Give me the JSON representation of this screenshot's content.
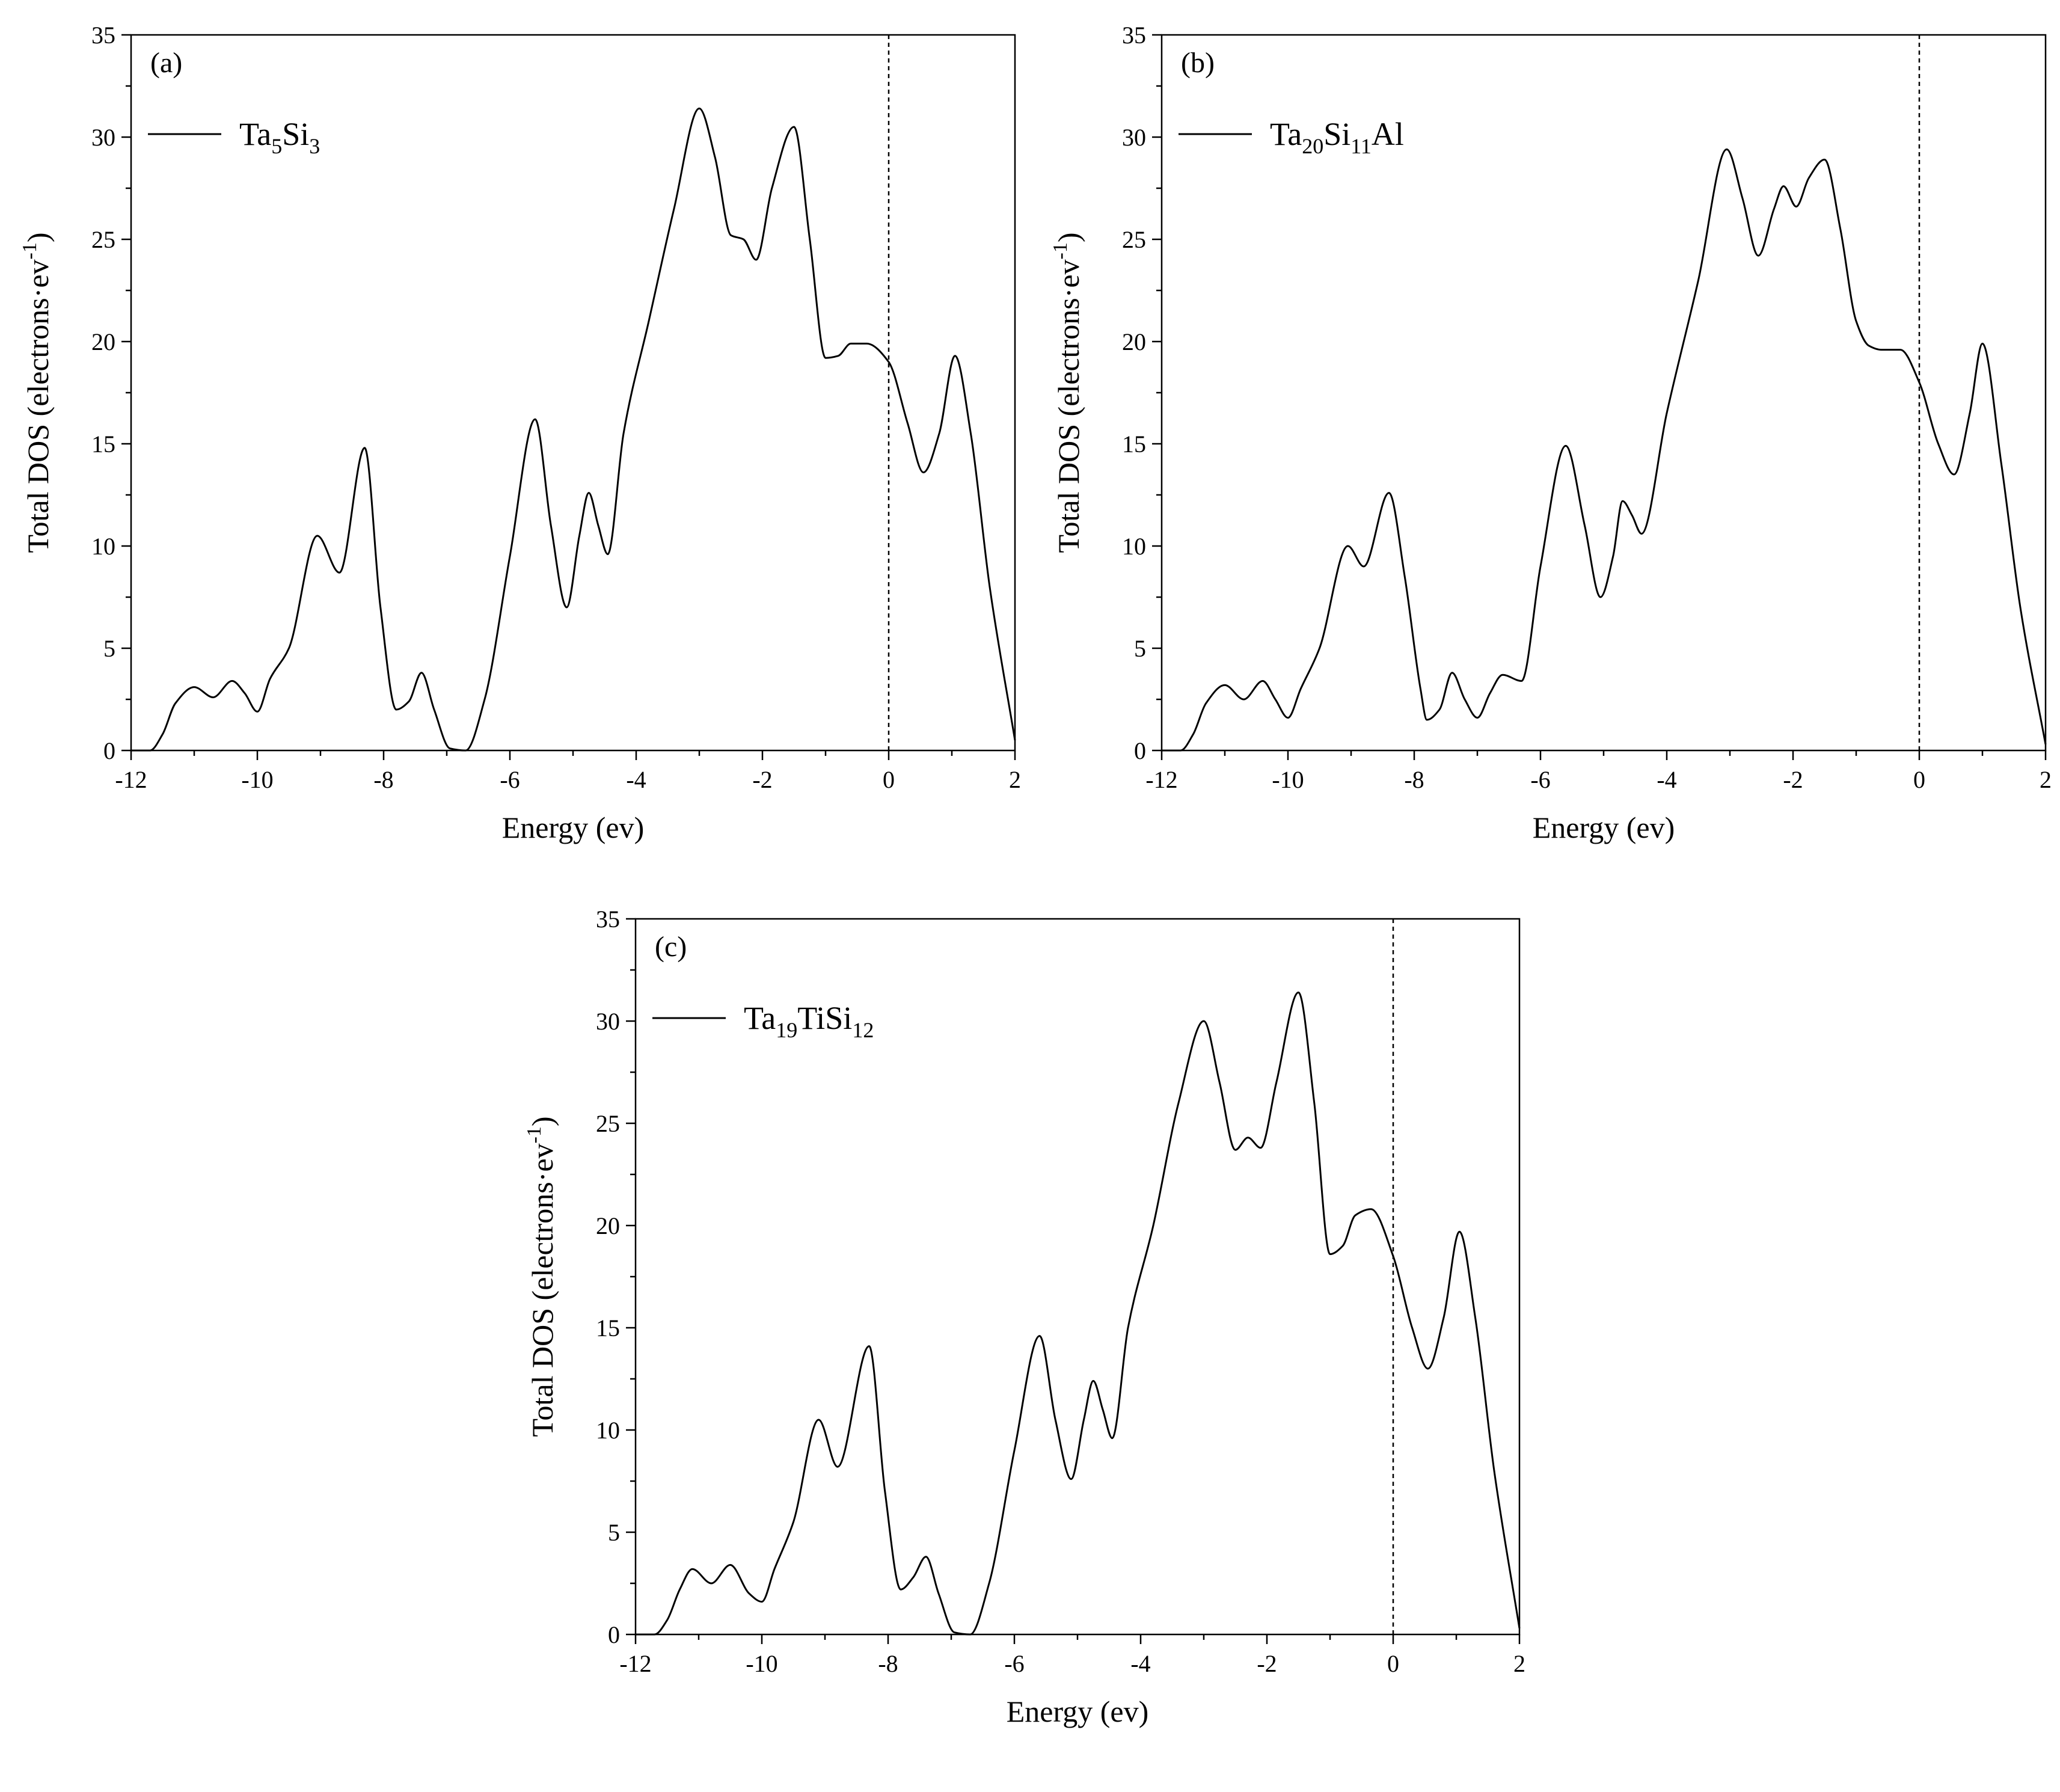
{
  "chart_data": [
    {
      "type": "line",
      "panel_label": "(a)",
      "legend": {
        "prefix": "Ta",
        "parts": [
          [
            "Ta",
            ""
          ],
          [
            "5",
            "sub"
          ],
          [
            "Si",
            ""
          ],
          [
            "3",
            "sub"
          ]
        ],
        "placement": "top-left"
      },
      "xlabel": "Energy (ev)",
      "ylabel": "Total DOS (electrons·ev",
      "ylabel_sup": "-1",
      "ylabel_close": ")",
      "xlim": [
        -12,
        2
      ],
      "ylim": [
        0,
        35
      ],
      "xticks": [
        "-12",
        "-10",
        "-8",
        "-6",
        "-4",
        "-2",
        "0",
        "2"
      ],
      "yticks": [
        "0",
        "5",
        "10",
        "15",
        "20",
        "25",
        "30",
        "35"
      ],
      "fermi_level": 0,
      "series": [
        {
          "name": "Ta5Si3",
          "x": [
            -12,
            -11.7,
            -11.5,
            -11.3,
            -11.0,
            -10.7,
            -10.4,
            -10.2,
            -10.0,
            -9.8,
            -9.5,
            -9.05,
            -8.7,
            -8.3,
            -8.05,
            -7.8,
            -7.6,
            -7.4,
            -7.2,
            -6.95,
            -6.7,
            -6.4,
            -6.0,
            -5.6,
            -5.35,
            -5.1,
            -4.9,
            -4.75,
            -4.6,
            -4.45,
            -4.2,
            -3.8,
            -3.4,
            -3.0,
            -2.75,
            -2.5,
            -2.3,
            -2.1,
            -1.85,
            -1.5,
            -1.25,
            -1.0,
            -0.8,
            -0.6,
            -0.35,
            0.0,
            0.3,
            0.55,
            0.8,
            1.05,
            1.3,
            1.6,
            2.0
          ],
          "values": [
            0,
            0,
            0.8,
            2.3,
            3.1,
            2.6,
            3.4,
            2.8,
            1.9,
            3.5,
            5.0,
            10.5,
            8.7,
            14.8,
            7.0,
            2.0,
            2.4,
            3.8,
            2.0,
            0.1,
            0,
            2.5,
            9.5,
            16.2,
            11.0,
            7.0,
            10.5,
            12.6,
            11.0,
            9.6,
            15.5,
            21.0,
            26.5,
            31.4,
            29.0,
            25.2,
            25.0,
            24.0,
            27.5,
            30.5,
            25.0,
            19.2,
            19.3,
            19.9,
            19.9,
            19.0,
            16.0,
            13.6,
            15.5,
            19.3,
            15.5,
            8.0,
            0.5
          ]
        }
      ]
    },
    {
      "type": "line",
      "panel_label": "(b)",
      "legend": {
        "prefix": "Ta",
        "parts": [
          [
            "Ta",
            ""
          ],
          [
            "20",
            "sub"
          ],
          [
            "Si",
            ""
          ],
          [
            "11",
            "sub"
          ],
          [
            "Al",
            ""
          ]
        ],
        "placement": "top-left"
      },
      "xlabel": "Energy (ev)",
      "ylabel": "Total DOS (electrons·ev",
      "ylabel_sup": "-1",
      "ylabel_close": ")",
      "xlim": [
        -12,
        2
      ],
      "ylim": [
        0,
        35
      ],
      "xticks": [
        "-12",
        "-10",
        "-8",
        "-6",
        "-4",
        "-2",
        "0",
        "2"
      ],
      "yticks": [
        "0",
        "5",
        "10",
        "15",
        "20",
        "25",
        "30",
        "35"
      ],
      "fermi_level": 0,
      "series": [
        {
          "name": "Ta20Si11Al",
          "x": [
            -12,
            -11.7,
            -11.5,
            -11.3,
            -11.0,
            -10.7,
            -10.4,
            -10.2,
            -10.0,
            -9.8,
            -9.5,
            -9.05,
            -8.8,
            -8.4,
            -8.15,
            -7.9,
            -7.8,
            -7.6,
            -7.4,
            -7.2,
            -7.0,
            -6.8,
            -6.6,
            -6.3,
            -6.0,
            -5.6,
            -5.3,
            -5.05,
            -4.85,
            -4.7,
            -4.55,
            -4.4,
            -4.0,
            -3.5,
            -3.05,
            -2.8,
            -2.55,
            -2.3,
            -2.15,
            -1.95,
            -1.75,
            -1.5,
            -1.25,
            -1.0,
            -0.8,
            -0.6,
            -0.3,
            0.0,
            0.3,
            0.55,
            0.8,
            1.0,
            1.3,
            1.6,
            2.0
          ],
          "values": [
            0,
            0,
            0.8,
            2.3,
            3.2,
            2.5,
            3.4,
            2.5,
            1.6,
            3.0,
            5.0,
            10.0,
            9.0,
            12.6,
            8.5,
            3.0,
            1.5,
            2.0,
            3.8,
            2.5,
            1.6,
            2.8,
            3.7,
            3.4,
            9.0,
            14.9,
            11.0,
            7.5,
            9.5,
            12.2,
            11.5,
            10.6,
            16.5,
            23.0,
            29.4,
            27.0,
            24.2,
            26.5,
            27.6,
            26.6,
            28.0,
            28.9,
            25.5,
            21.0,
            19.8,
            19.6,
            19.6,
            18.0,
            15.0,
            13.5,
            16.5,
            19.9,
            14.0,
            7.0,
            0.3
          ]
        }
      ]
    },
    {
      "type": "line",
      "panel_label": "(c)",
      "legend": {
        "prefix": "Ta",
        "parts": [
          [
            "Ta",
            ""
          ],
          [
            "19",
            "sub"
          ],
          [
            "TiSi",
            ""
          ],
          [
            "12",
            "sub"
          ]
        ],
        "placement": "top-left"
      },
      "xlabel": "Energy (ev)",
      "ylabel": "Total DOS (electrons·ev",
      "ylabel_sup": "-1",
      "ylabel_close": ")",
      "xlim": [
        -12,
        2
      ],
      "ylim": [
        0,
        35
      ],
      "xticks": [
        "-12",
        "-10",
        "-8",
        "-6",
        "-4",
        "-2",
        "0",
        "2"
      ],
      "yticks": [
        "0",
        "5",
        "10",
        "15",
        "20",
        "25",
        "30",
        "35"
      ],
      "fermi_level": 0,
      "series": [
        {
          "name": "Ta19TiSi12",
          "x": [
            -12,
            -11.7,
            -11.5,
            -11.3,
            -11.1,
            -10.8,
            -10.5,
            -10.2,
            -10.0,
            -9.8,
            -9.5,
            -9.1,
            -8.8,
            -8.3,
            -8.05,
            -7.8,
            -7.6,
            -7.4,
            -7.2,
            -6.95,
            -6.7,
            -6.4,
            -6.0,
            -5.6,
            -5.35,
            -5.1,
            -4.9,
            -4.75,
            -4.6,
            -4.45,
            -4.2,
            -3.8,
            -3.4,
            -3.0,
            -2.75,
            -2.5,
            -2.3,
            -2.1,
            -1.85,
            -1.5,
            -1.25,
            -1.0,
            -0.8,
            -0.6,
            -0.35,
            0.0,
            0.3,
            0.55,
            0.8,
            1.05,
            1.3,
            1.6,
            2.0
          ],
          "values": [
            0,
            0,
            0.7,
            2.2,
            3.2,
            2.5,
            3.4,
            2.0,
            1.6,
            3.2,
            5.5,
            10.5,
            8.2,
            14.1,
            7.0,
            2.2,
            2.8,
            3.8,
            2.0,
            0.1,
            0,
            2.5,
            9.0,
            14.6,
            10.5,
            7.6,
            10.5,
            12.4,
            11.0,
            9.6,
            15.0,
            20.0,
            26.0,
            30.0,
            27.0,
            23.7,
            24.3,
            23.8,
            27.0,
            31.4,
            26.0,
            18.6,
            19.0,
            20.5,
            20.8,
            18.5,
            15.0,
            13.0,
            15.5,
            19.7,
            15.5,
            8.0,
            0.3
          ]
        }
      ]
    }
  ]
}
